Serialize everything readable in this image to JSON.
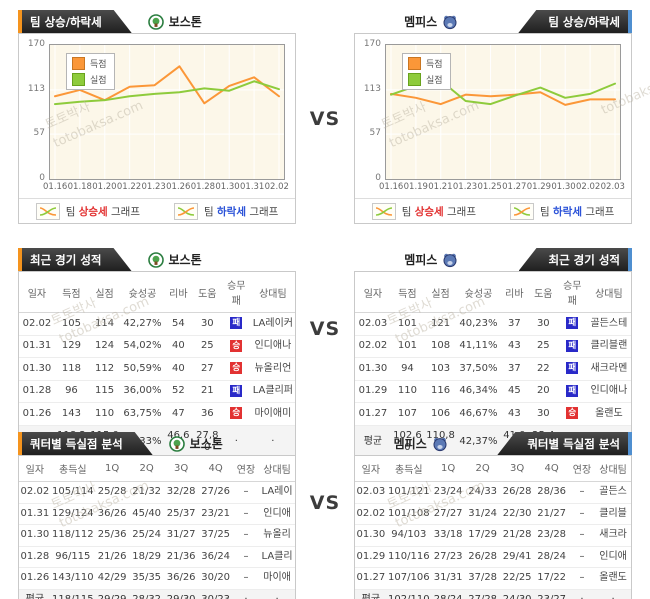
{
  "page": {
    "vs": "VS",
    "watermark_line1": "토토박사",
    "watermark_line2": "totobaksa.com"
  },
  "tabs": {
    "trend": "팀 상승/하락세",
    "recent": "최근 경기 성적",
    "quarter": "쿼터별 득실점 분석"
  },
  "teams": {
    "left": "보스톤",
    "right": "멤피스"
  },
  "chart_footer": {
    "rise_pre": "팀 ",
    "rise_em": "상승세",
    "rise_post": " 그래프",
    "fall_pre": "팀 ",
    "fall_em": "하락세",
    "fall_post": " 그래프"
  },
  "chart_data": [
    {
      "type": "line",
      "title": "팀 상승/하락세",
      "team": "보스톤",
      "x": [
        "01.16",
        "01.18",
        "01.20",
        "01.22",
        "01.23",
        "01.26",
        "01.28",
        "01.30",
        "01.31",
        "02.02"
      ],
      "series": [
        {
          "name": "득점",
          "color": "#fb9738",
          "values": [
            105,
            113,
            100,
            117,
            119,
            143,
            96,
            118,
            129,
            105
          ]
        },
        {
          "name": "실점",
          "color": "#8ecb3c",
          "values": [
            95,
            98,
            100,
            105,
            108,
            110,
            115,
            112,
            124,
            114
          ]
        }
      ],
      "ylim": [
        0,
        170
      ],
      "yticks": [
        0,
        57,
        113,
        170
      ],
      "grid": true,
      "legend_position": "top-left"
    },
    {
      "type": "line",
      "title": "팀 상승/하락세",
      "team": "멤피스",
      "x": [
        "01.16",
        "01.19",
        "01.21",
        "01.23",
        "01.25",
        "01.27",
        "01.29",
        "01.30",
        "02.02",
        "02.03"
      ],
      "series": [
        {
          "name": "득점",
          "color": "#fb9738",
          "values": [
            108,
            103,
            95,
            107,
            105,
            107,
            110,
            94,
            101,
            101
          ]
        },
        {
          "name": "실점",
          "color": "#8ecb3c",
          "values": [
            107,
            118,
            125,
            99,
            95,
            106,
            116,
            103,
            108,
            121
          ]
        }
      ],
      "ylim": [
        0,
        170
      ],
      "yticks": [
        0,
        57,
        113,
        170
      ],
      "grid": true,
      "legend_position": "top-left"
    }
  ],
  "recent_table": {
    "headers": [
      "일자",
      "득점",
      "실점",
      "슛성공",
      "리바",
      "도움",
      "승무패",
      "상대팀"
    ],
    "left": {
      "team": "보스톤",
      "rows": [
        [
          "02.02",
          "105",
          "114",
          "42,27%",
          "54",
          "30",
          "패",
          "LA레이커"
        ],
        [
          "01.31",
          "129",
          "124",
          "54,02%",
          "40",
          "25",
          "승",
          "인디애나"
        ],
        [
          "01.30",
          "118",
          "112",
          "50,59%",
          "40",
          "27",
          "승",
          "뉴올리언"
        ],
        [
          "01.28",
          "96",
          "115",
          "36,00%",
          "52",
          "21",
          "패",
          "LA클리퍼"
        ],
        [
          "01.26",
          "143",
          "110",
          "63,75%",
          "47",
          "36",
          "승",
          "마이애미"
        ]
      ],
      "avg": [
        "평균",
        "118,20",
        "115,00",
        "49,33%",
        "46,60",
        "27,80",
        "·",
        "·"
      ]
    },
    "right": {
      "team": "멤피스",
      "rows": [
        [
          "02.03",
          "101",
          "121",
          "40,23%",
          "37",
          "30",
          "패",
          "골든스테"
        ],
        [
          "02.02",
          "101",
          "108",
          "41,11%",
          "43",
          "25",
          "패",
          "클리블랜"
        ],
        [
          "01.30",
          "94",
          "103",
          "37,50%",
          "37",
          "22",
          "패",
          "새크라멘"
        ],
        [
          "01.29",
          "110",
          "116",
          "46,34%",
          "45",
          "20",
          "패",
          "인디애나"
        ],
        [
          "01.27",
          "107",
          "106",
          "46,67%",
          "43",
          "30",
          "승",
          "올랜도"
        ]
      ],
      "avg": [
        "평균",
        "102,60",
        "110,80",
        "42,37%",
        "41,00",
        "25,40",
        "·",
        "·"
      ]
    }
  },
  "quarter_table": {
    "headers": [
      "일자",
      "총득실",
      "1Q",
      "2Q",
      "3Q",
      "4Q",
      "연장",
      "상대팀"
    ],
    "left": {
      "team": "보스톤",
      "rows": [
        [
          "02.02",
          "105/114",
          "25/28",
          "21/32",
          "32/28",
          "27/26",
          "–",
          "LA레이"
        ],
        [
          "01.31",
          "129/124",
          "36/26",
          "45/40",
          "25/37",
          "23/21",
          "–",
          "인디애"
        ],
        [
          "01.30",
          "118/112",
          "25/36",
          "25/24",
          "31/27",
          "37/25",
          "–",
          "뉴올리"
        ],
        [
          "01.28",
          "96/115",
          "21/26",
          "18/29",
          "21/36",
          "36/24",
          "–",
          "LA클리"
        ],
        [
          "01.26",
          "143/110",
          "42/29",
          "35/35",
          "36/26",
          "30/20",
          "–",
          "마이애"
        ]
      ],
      "avg": [
        "평균",
        "118/115",
        "29/29",
        "28/32",
        "29/30",
        "30/23",
        "·",
        "·"
      ]
    },
    "right": {
      "team": "멤피스",
      "rows": [
        [
          "02.03",
          "101/121",
          "23/24",
          "24/33",
          "26/28",
          "28/36",
          "–",
          "골든스"
        ],
        [
          "02.02",
          "101/108",
          "27/27",
          "31/24",
          "22/30",
          "21/27",
          "–",
          "클리블"
        ],
        [
          "01.30",
          "94/103",
          "33/18",
          "17/29",
          "21/28",
          "23/28",
          "–",
          "새크라"
        ],
        [
          "01.29",
          "110/116",
          "27/23",
          "26/28",
          "29/41",
          "28/24",
          "–",
          "인디애"
        ],
        [
          "01.27",
          "107/106",
          "31/31",
          "37/28",
          "22/25",
          "17/22",
          "–",
          "올랜도"
        ]
      ],
      "avg": [
        "평균",
        "102/110",
        "28/24",
        "27/28",
        "24/30",
        "23/27",
        "·",
        "·"
      ]
    }
  },
  "colors": {
    "accent_left": "#f5941e",
    "accent_right": "#4f8fd0",
    "score_line": "#fb9738",
    "concede_line": "#8ecb3c",
    "win_badge": "#e23232",
    "loss_badge": "#2929c8"
  },
  "badges": {
    "win": "승",
    "loss": "패"
  }
}
